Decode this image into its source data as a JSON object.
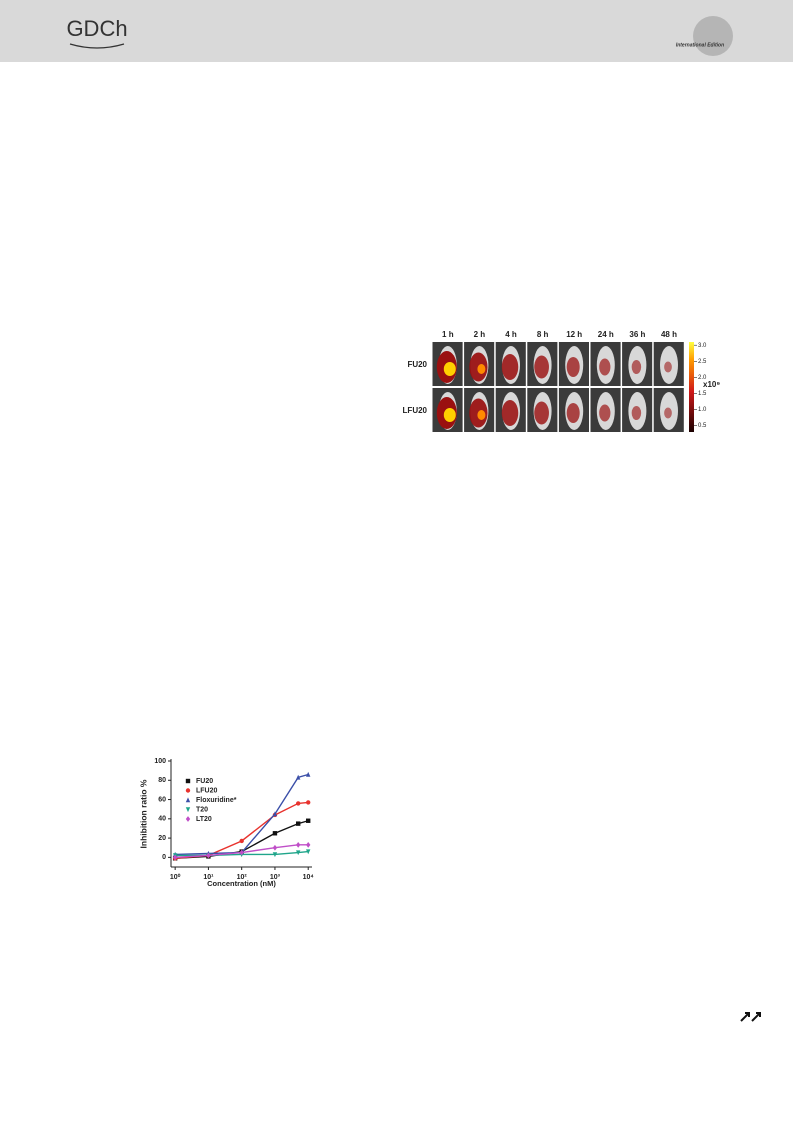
{
  "header": {
    "logo": "GDCh",
    "edition": "International Edition"
  },
  "figure": {
    "columns": [
      "1 h",
      "2 h",
      "4 h",
      "8 h",
      "12 h",
      "24 h",
      "36 h",
      "48 h"
    ],
    "rows": [
      "FU20",
      "LFU20"
    ],
    "colorbar": {
      "lim": [
        0.3,
        3.1
      ],
      "unit": "x10⁹",
      "ticks": [
        {
          "value": 3,
          "label": "3.0"
        },
        2.5,
        {
          "value": 2,
          "label": "2.0"
        },
        1.5,
        {
          "value": 1,
          "label": "1.0"
        },
        0.5
      ]
    }
  },
  "chart_data": {
    "type": "line",
    "xlabel": "Concentration (nM)",
    "ylabel": "Inhibition ratio %",
    "x": [
      1,
      10,
      100,
      1000,
      5000,
      10000
    ],
    "log_x": true,
    "xlim": [
      0.75,
      13000
    ],
    "ylim": [
      -10,
      100
    ],
    "xticks": [
      {
        "value": 1,
        "label": "10⁰"
      },
      {
        "value": 10,
        "label": "10¹"
      },
      {
        "value": 100,
        "label": "10²"
      },
      {
        "value": 1000,
        "label": "10³"
      },
      {
        "value": 10000,
        "label": "10⁴"
      }
    ],
    "yticks": [
      0,
      20,
      40,
      60,
      80,
      100
    ],
    "series": [
      {
        "name": "FU20",
        "color": "#111111",
        "marker": "square",
        "values": [
          -1,
          1,
          6,
          25,
          35,
          38
        ]
      },
      {
        "name": "LFU20",
        "color": "#e8332e",
        "marker": "circle",
        "values": [
          -1,
          2,
          17,
          44,
          56,
          57
        ]
      },
      {
        "name": "Floxuridine*",
        "color": "#3b4fa8",
        "marker": "triangle",
        "values": [
          3,
          4,
          5,
          45,
          83,
          86
        ]
      },
      {
        "name": "T20",
        "color": "#1fa58a",
        "marker": "triangle-down",
        "values": [
          2,
          2,
          3,
          3,
          5,
          6
        ]
      },
      {
        "name": "LT20",
        "color": "#c04fc8",
        "marker": "diamond",
        "values": [
          0,
          2,
          5,
          10,
          13,
          13
        ]
      }
    ]
  }
}
